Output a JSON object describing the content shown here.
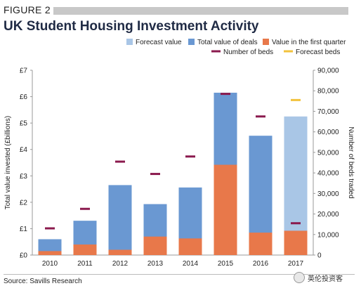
{
  "figure_label": "FIGURE 2",
  "title": "UK Student Housing Investment Activity",
  "source": "Source: Savills Research",
  "watermark": "英伦投资客",
  "colors": {
    "forecast_value": "#a9c6e6",
    "total_value": "#6a98d2",
    "first_quarter": "#e8784a",
    "beds": "#8b1a4e",
    "forecast_beds": "#f2c23c",
    "axis": "#999999"
  },
  "chart_data": {
    "type": "bar",
    "title": "UK Student Housing Investment Activity",
    "categories": [
      "2010",
      "2011",
      "2012",
      "2013",
      "2014",
      "2015",
      "2016",
      "2017"
    ],
    "ylabel": "Total value invested (£billions)",
    "y2label": "Number of beds traded",
    "ylim": [
      0,
      7
    ],
    "y2lim": [
      0,
      90000
    ],
    "y_ticks": [
      "£0",
      "£1",
      "£2",
      "£3",
      "£4",
      "£5",
      "£6",
      "£7"
    ],
    "y2_ticks": [
      "0",
      "10,000",
      "20,000",
      "30,000",
      "40,000",
      "50,000",
      "60,000",
      "70,000",
      "80,000",
      "90,000"
    ],
    "legend_position": "top-right",
    "legend": [
      "Forecast value",
      "Total value of deals",
      "Value in the first quarter",
      "Number of beds",
      "Forecast beds"
    ],
    "series": [
      {
        "name": "Forecast value",
        "values": [
          null,
          null,
          null,
          null,
          null,
          null,
          null,
          5.25
        ]
      },
      {
        "name": "Total value of deals",
        "values": [
          0.6,
          1.3,
          2.65,
          1.93,
          2.56,
          6.15,
          4.52,
          0.92
        ]
      },
      {
        "name": "Value in the first quarter",
        "values": [
          0.15,
          0.4,
          0.2,
          0.7,
          0.63,
          3.42,
          0.85,
          0.92
        ]
      },
      {
        "name": "Number of beds",
        "values": [
          13000,
          22500,
          45500,
          39500,
          48000,
          78500,
          67500,
          15500
        ]
      },
      {
        "name": "Forecast beds",
        "values": [
          null,
          null,
          null,
          null,
          null,
          null,
          null,
          75500
        ]
      }
    ]
  }
}
